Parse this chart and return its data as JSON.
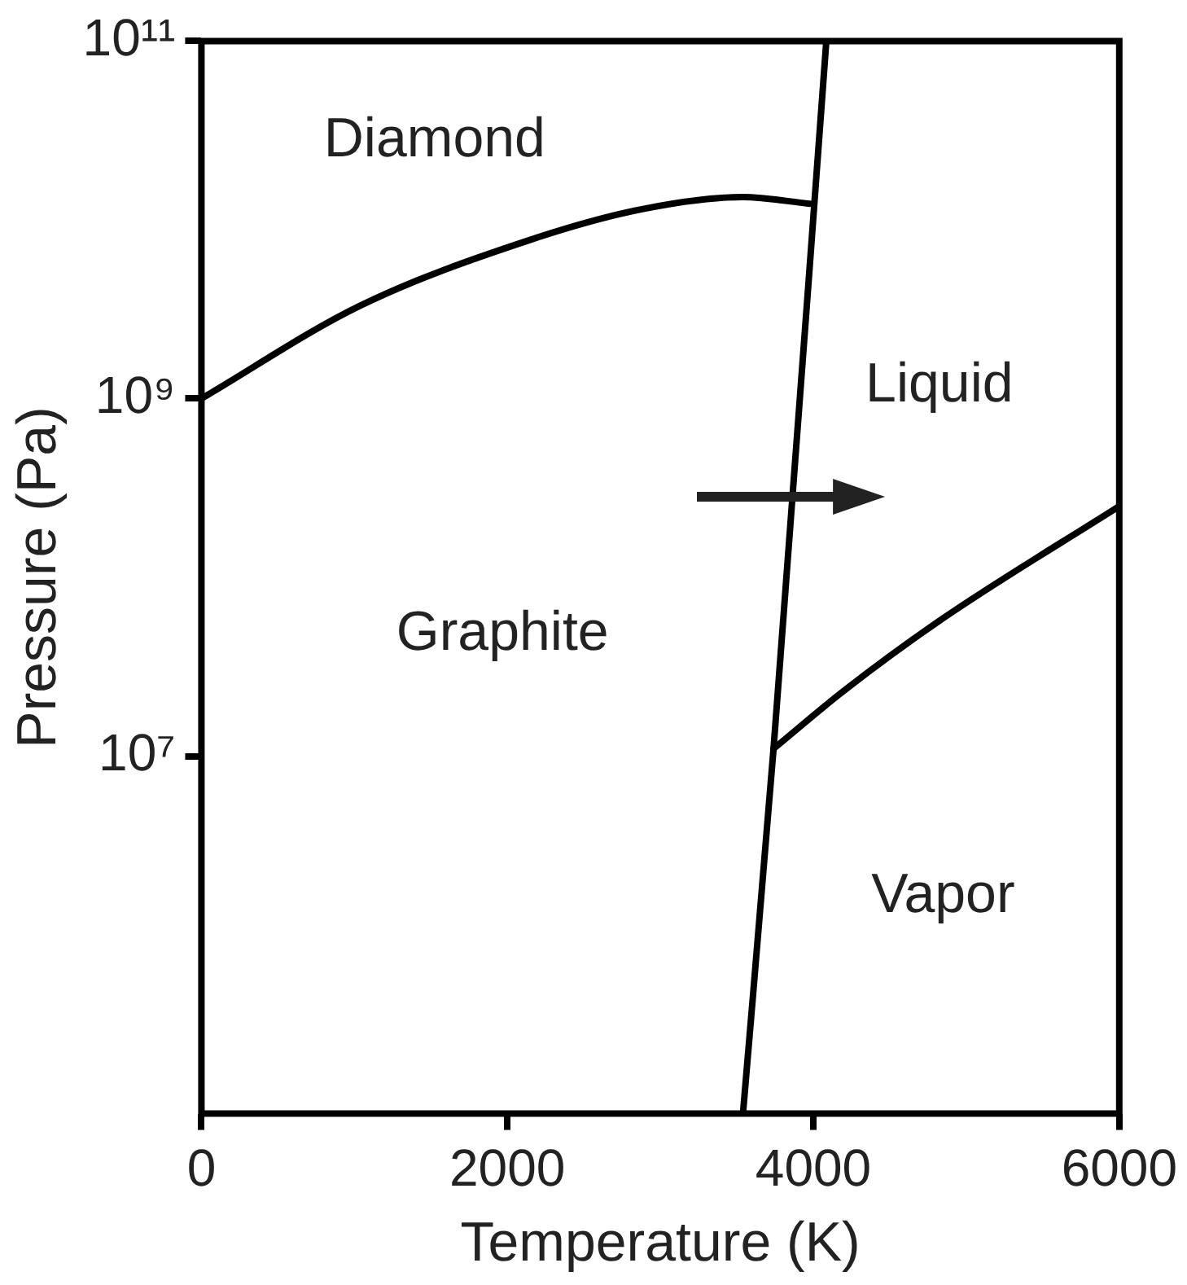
{
  "chart_data": {
    "type": "line",
    "xlabel": "Temperature (K)",
    "ylabel": "Pressure (Pa)",
    "xlim": [
      0,
      6000
    ],
    "xticks": [
      0,
      2000,
      4000,
      6000
    ],
    "ylim": [
      100000,
      100000000000
    ],
    "yticks": [
      {
        "value": 10000000,
        "label": "10⁷"
      },
      {
        "value": 1000000000,
        "label": "10⁹"
      },
      {
        "value": 100000000000,
        "label": "10¹¹"
      }
    ],
    "log": "y",
    "grid": false,
    "legend": false,
    "marker": "none",
    "line_style": "solid",
    "series": [
      {
        "color": "#000000",
        "x": [
          0,
          1035,
          2124,
          2887,
          3540,
          3976
        ],
        "values": [
          1000000000,
          3300000000,
          7600000000,
          11500000000,
          13400000000,
          12300000000
        ]
      },
      {
        "color": "#000000",
        "x": [
          3540,
          3740,
          4085
        ],
        "values": [
          100000,
          11000000,
          100000000000
        ]
      },
      {
        "color": "#000000",
        "x": [
          3740,
          4194,
          4848,
          6000
        ],
        "values": [
          11000000,
          23000000,
          59000000,
          250000000
        ]
      }
    ],
    "annotations": [
      "Diamond",
      "Liquid",
      "Graphite",
      "Vapor"
    ]
  }
}
